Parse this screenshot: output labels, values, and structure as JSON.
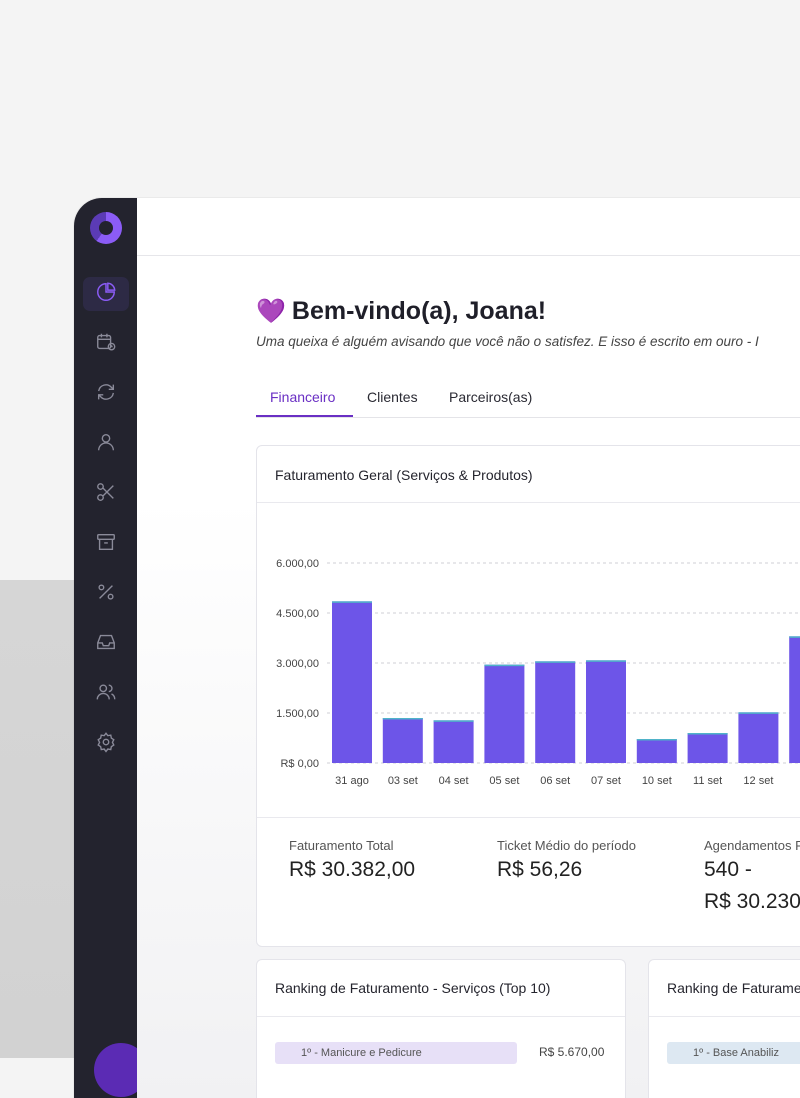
{
  "sidebar": {
    "items": [
      {
        "icon": "pie-chart-icon",
        "active": true
      },
      {
        "icon": "calendar-clock-icon",
        "active": false
      },
      {
        "icon": "refresh-icon",
        "active": false
      },
      {
        "icon": "user-icon",
        "active": false
      },
      {
        "icon": "scissors-icon",
        "active": false
      },
      {
        "icon": "archive-icon",
        "active": false
      },
      {
        "icon": "percent-icon",
        "active": false
      },
      {
        "icon": "inbox-icon",
        "active": false
      },
      {
        "icon": "users-icon",
        "active": false
      },
      {
        "icon": "gear-icon",
        "active": false
      }
    ],
    "accent": "#8b5cf6",
    "background": "#23232e"
  },
  "header": {
    "greeting": "Bem-vindo(a), Joana!",
    "greeting_icon": "purple-heart-icon",
    "quote": "Uma queixa é alguém avisando que você não o satisfez. E isso é escrito em ouro - I"
  },
  "tabs": [
    {
      "label": "Financeiro",
      "active": true
    },
    {
      "label": "Clientes",
      "active": false
    },
    {
      "label": "Parceiros(as)",
      "active": false
    }
  ],
  "revenue_card": {
    "title": "Faturamento Geral (Serviços & Produtos)",
    "stats": [
      {
        "label": "Faturamento Total",
        "value": "R$ 30.382,00"
      },
      {
        "label": "Ticket Médio do período",
        "value": "R$ 56,26"
      },
      {
        "label": "Agendamentos F",
        "value": "540 -",
        "value2": "R$ 30.230"
      }
    ]
  },
  "chart_data": {
    "type": "bar",
    "categories": [
      "31 ago",
      "03 set",
      "04 set",
      "05 set",
      "06 set",
      "07 set",
      "10 set",
      "11 set",
      "12 set",
      ""
    ],
    "values": [
      4850,
      1350,
      1280,
      2950,
      3050,
      3080,
      720,
      900,
      1520,
      3800
    ],
    "y_ticks": [
      "R$ 0,00",
      "1.500,00",
      "3.000,00",
      "4.500,00",
      "6.000,00"
    ],
    "ylim": [
      0,
      6000
    ],
    "grid": true,
    "bar_color": "#6d55e8",
    "cap_color": "#4fb3c9"
  },
  "ranking_services": {
    "title": "Ranking de Faturamento - Serviços (Top 10)",
    "first_item": {
      "label": "1º - Manicure e Pedicure",
      "value": "R$ 5.670,00"
    }
  },
  "ranking_products": {
    "title": "Ranking de Faturame",
    "first_item": {
      "label": "1º - Base Anabiliz"
    }
  }
}
